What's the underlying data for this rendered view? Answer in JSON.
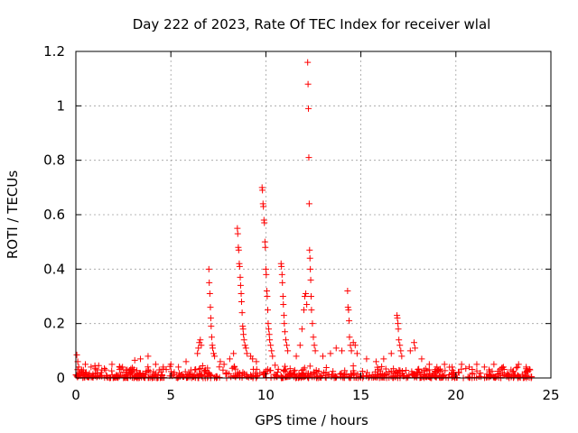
{
  "chart_data": {
    "type": "scatter",
    "title": "Day 222 of 2023, Rate Of TEC Index for receiver wlal",
    "xlabel": "GPS time / hours",
    "ylabel": "ROTI / TECUs",
    "xlim": [
      0,
      25
    ],
    "ylim": [
      0,
      1.2
    ],
    "xticks": [
      0,
      5,
      10,
      15,
      20,
      25
    ],
    "xtick_labels": [
      "0",
      "5",
      "10",
      "15",
      "20",
      "25"
    ],
    "yticks": [
      0,
      0.2,
      0.4,
      0.6,
      0.8,
      1.0,
      1.2
    ],
    "ytick_labels": [
      "0",
      "0.2",
      "0.4",
      "0.6",
      "0.8",
      "1",
      "1.2"
    ],
    "grid": true,
    "legend": "none",
    "marker": "+",
    "marker_color": "#ff0000",
    "series": [
      {
        "points": [
          [
            0.05,
            0.085
          ],
          [
            0.1,
            0.06
          ],
          [
            0.15,
            0.04
          ],
          [
            0.3,
            0.03
          ],
          [
            0.5,
            0.05
          ],
          [
            0.8,
            0.04
          ],
          [
            1.1,
            0.03
          ],
          [
            1.5,
            0.035
          ],
          [
            1.9,
            0.05
          ],
          [
            2.3,
            0.04
          ],
          [
            2.7,
            0.03
          ],
          [
            3.1,
            0.065
          ],
          [
            3.4,
            0.07
          ],
          [
            3.8,
            0.08
          ],
          [
            4.2,
            0.05
          ],
          [
            4.6,
            0.04
          ],
          [
            5.0,
            0.05
          ],
          [
            5.4,
            0.04
          ],
          [
            5.8,
            0.06
          ],
          [
            6.4,
            0.09
          ],
          [
            6.45,
            0.11
          ],
          [
            6.5,
            0.13
          ],
          [
            6.55,
            0.14
          ],
          [
            6.6,
            0.12
          ],
          [
            7.0,
            0.4
          ],
          [
            7.02,
            0.35
          ],
          [
            7.05,
            0.31
          ],
          [
            7.08,
            0.26
          ],
          [
            7.1,
            0.22
          ],
          [
            7.12,
            0.19
          ],
          [
            7.15,
            0.15
          ],
          [
            7.18,
            0.12
          ],
          [
            7.2,
            0.11
          ],
          [
            7.25,
            0.09
          ],
          [
            7.3,
            0.08
          ],
          [
            7.6,
            0.06
          ],
          [
            7.8,
            0.05
          ],
          [
            8.1,
            0.07
          ],
          [
            8.3,
            0.09
          ],
          [
            8.5,
            0.55
          ],
          [
            8.52,
            0.53
          ],
          [
            8.55,
            0.48
          ],
          [
            8.57,
            0.47
          ],
          [
            8.6,
            0.42
          ],
          [
            8.62,
            0.41
          ],
          [
            8.65,
            0.37
          ],
          [
            8.67,
            0.34
          ],
          [
            8.7,
            0.31
          ],
          [
            8.72,
            0.28
          ],
          [
            8.75,
            0.24
          ],
          [
            8.78,
            0.19
          ],
          [
            8.8,
            0.18
          ],
          [
            8.82,
            0.16
          ],
          [
            8.85,
            0.14
          ],
          [
            8.9,
            0.12
          ],
          [
            8.95,
            0.11
          ],
          [
            9.0,
            0.09
          ],
          [
            9.2,
            0.08
          ],
          [
            9.3,
            0.07
          ],
          [
            9.5,
            0.06
          ],
          [
            9.8,
            0.7
          ],
          [
            9.82,
            0.69
          ],
          [
            9.85,
            0.64
          ],
          [
            9.87,
            0.63
          ],
          [
            9.9,
            0.58
          ],
          [
            9.92,
            0.57
          ],
          [
            9.95,
            0.5
          ],
          [
            9.97,
            0.48
          ],
          [
            10.0,
            0.4
          ],
          [
            10.02,
            0.38
          ],
          [
            10.05,
            0.32
          ],
          [
            10.07,
            0.3
          ],
          [
            10.1,
            0.25
          ],
          [
            10.12,
            0.2
          ],
          [
            10.15,
            0.18
          ],
          [
            10.18,
            0.16
          ],
          [
            10.2,
            0.14
          ],
          [
            10.25,
            0.12
          ],
          [
            10.3,
            0.1
          ],
          [
            10.35,
            0.08
          ],
          [
            10.8,
            0.42
          ],
          [
            10.82,
            0.41
          ],
          [
            10.85,
            0.38
          ],
          [
            10.87,
            0.35
          ],
          [
            10.9,
            0.3
          ],
          [
            10.92,
            0.27
          ],
          [
            10.95,
            0.23
          ],
          [
            10.97,
            0.2
          ],
          [
            11.0,
            0.17
          ],
          [
            11.05,
            0.14
          ],
          [
            11.1,
            0.12
          ],
          [
            11.15,
            0.1
          ],
          [
            11.6,
            0.08
          ],
          [
            11.8,
            0.12
          ],
          [
            11.9,
            0.18
          ],
          [
            12.0,
            0.25
          ],
          [
            12.05,
            0.3
          ],
          [
            12.1,
            0.31
          ],
          [
            12.15,
            0.27
          ],
          [
            12.2,
            1.16
          ],
          [
            12.22,
            1.08
          ],
          [
            12.24,
            0.99
          ],
          [
            12.26,
            0.81
          ],
          [
            12.28,
            0.64
          ],
          [
            12.3,
            0.47
          ],
          [
            12.32,
            0.44
          ],
          [
            12.34,
            0.4
          ],
          [
            12.36,
            0.36
          ],
          [
            12.38,
            0.3
          ],
          [
            12.4,
            0.25
          ],
          [
            12.45,
            0.2
          ],
          [
            12.5,
            0.15
          ],
          [
            12.55,
            0.12
          ],
          [
            12.6,
            0.1
          ],
          [
            13.0,
            0.08
          ],
          [
            13.4,
            0.09
          ],
          [
            13.7,
            0.11
          ],
          [
            14.0,
            0.1
          ],
          [
            14.3,
            0.32
          ],
          [
            14.32,
            0.26
          ],
          [
            14.35,
            0.25
          ],
          [
            14.38,
            0.21
          ],
          [
            14.4,
            0.15
          ],
          [
            14.45,
            0.12
          ],
          [
            14.5,
            0.1
          ],
          [
            14.6,
            0.13
          ],
          [
            14.7,
            0.12
          ],
          [
            14.8,
            0.09
          ],
          [
            15.3,
            0.07
          ],
          [
            15.8,
            0.06
          ],
          [
            16.2,
            0.07
          ],
          [
            16.6,
            0.09
          ],
          [
            16.9,
            0.23
          ],
          [
            16.92,
            0.22
          ],
          [
            16.95,
            0.2
          ],
          [
            16.97,
            0.18
          ],
          [
            17.0,
            0.14
          ],
          [
            17.05,
            0.12
          ],
          [
            17.1,
            0.1
          ],
          [
            17.15,
            0.08
          ],
          [
            17.6,
            0.1
          ],
          [
            17.8,
            0.13
          ],
          [
            17.85,
            0.11
          ],
          [
            18.2,
            0.07
          ],
          [
            18.6,
            0.05
          ],
          [
            19.0,
            0.04
          ],
          [
            19.4,
            0.05
          ],
          [
            19.8,
            0.04
          ],
          [
            20.3,
            0.05
          ],
          [
            20.7,
            0.04
          ],
          [
            21.1,
            0.05
          ],
          [
            21.5,
            0.04
          ],
          [
            22.0,
            0.05
          ],
          [
            22.5,
            0.04
          ],
          [
            22.9,
            0.03
          ],
          [
            23.3,
            0.05
          ],
          [
            23.7,
            0.04
          ],
          [
            23.9,
            0.03
          ]
        ]
      }
    ]
  }
}
